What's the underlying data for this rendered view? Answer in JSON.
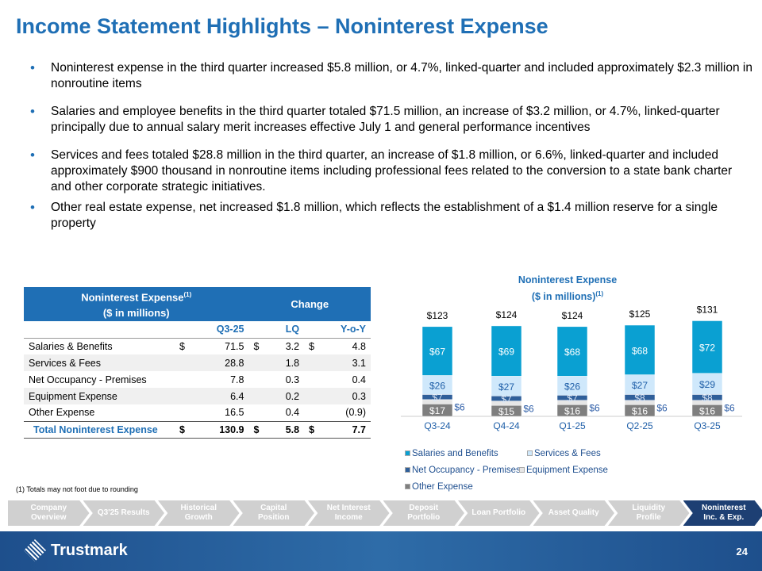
{
  "title": "Income Statement Highlights – Noninterest Expense",
  "bullets": [
    "Noninterest expense in the third quarter increased $5.8 million, or 4.7%, linked-quarter and included approximately $2.3 million in nonroutine items",
    "Salaries and employee benefits in the third quarter totaled $71.5 million, an increase of $3.2 million, or 4.7%, linked-quarter principally due to annual salary merit increases effective July 1 and general performance incentives",
    "Services and fees totaled $28.8 million in the third quarter, an increase of $1.8 million, or 6.6%, linked-quarter and included approximately $900 thousand  in nonroutine items including professional fees related to the conversion to a state bank charter and other corporate strategic initiatives.",
    "Other real estate expense, net increased $1.8 million, which reflects the establishment of a $1.4 million reserve for a single property"
  ],
  "table": {
    "title": "Noninterest Expense",
    "title_sup": "(1)",
    "title_sub": "($ in millions)",
    "change": "Change",
    "cols": [
      "Q3-25",
      "LQ",
      "Y-o-Y"
    ],
    "rows": [
      {
        "label": "Salaries & Benefits",
        "c1": "$",
        "v1": "71.5",
        "c2": "$",
        "v2": "3.2",
        "c3": "$",
        "v3": "4.8"
      },
      {
        "label": "Services & Fees",
        "c1": "",
        "v1": "28.8",
        "c2": "",
        "v2": "1.8",
        "c3": "",
        "v3": "3.1"
      },
      {
        "label": "Net Occupancy - Premises",
        "c1": "",
        "v1": "7.8",
        "c2": "",
        "v2": "0.3",
        "c3": "",
        "v3": "0.4"
      },
      {
        "label": "Equipment Expense",
        "c1": "",
        "v1": "6.4",
        "c2": "",
        "v2": "0.2",
        "c3": "",
        "v3": "0.3"
      },
      {
        "label": "Other Expense",
        "c1": "",
        "v1": "16.5",
        "c2": "",
        "v2": "0.4",
        "c3": "",
        "v3": "(0.9)"
      },
      {
        "label": "Total Noninterest Expense",
        "c1": "$",
        "v1": "130.9",
        "c2": "$",
        "v2": "5.8",
        "c3": "$",
        "v3": "7.7"
      }
    ]
  },
  "chart_data": {
    "type": "bar",
    "stacked": true,
    "title": "Noninterest Expense",
    "subtitle": "($ in millions)",
    "subtitle_sup": "(1)",
    "categories": [
      "Q3-24",
      "Q4-24",
      "Q1-25",
      "Q2-25",
      "Q3-25"
    ],
    "totals": [
      "$123",
      "$124",
      "$124",
      "$125",
      "$131"
    ],
    "total_values": [
      123,
      124,
      124,
      125,
      131
    ],
    "series": [
      {
        "name": "Other Expense",
        "color": "#7f7f7f",
        "label_color": "#ffffff",
        "values": [
          17,
          15,
          16,
          16,
          16
        ]
      },
      {
        "name": "Equipment Expense",
        "color": "#e6e6e6",
        "label_color": "#2f5fa8",
        "values": [
          6,
          6,
          6,
          6,
          6
        ],
        "outside": true
      },
      {
        "name": "Net Occupancy - Premises",
        "color": "#2f5f9a",
        "label_color": "#dbe6f5",
        "values": [
          7,
          7,
          7,
          8,
          8
        ]
      },
      {
        "name": "Services & Fees",
        "color": "#cfe8fb",
        "label_color": "#1f5fa8",
        "values": [
          26,
          27,
          26,
          27,
          29
        ]
      },
      {
        "name": "Salaries and Benefits",
        "color": "#0aa0d2",
        "label_color": "#ffffff",
        "values": [
          67,
          69,
          68,
          68,
          72
        ]
      }
    ],
    "legend": [
      "Salaries and Benefits",
      "Services & Fees",
      "Net Occupancy - Premises",
      "Equipment Expense",
      "Other Expense"
    ],
    "legend_colors": [
      "#0aa0d2",
      "#cfe8fb",
      "#2f5f9a",
      "#e6e6e6",
      "#7f7f7f"
    ]
  },
  "footnote": "(1)      Totals may not foot due to rounding",
  "nav": [
    "Company Overview",
    "Q3'25 Results",
    "Historical Growth",
    "Capital Position",
    "Net Interest Income",
    "Deposit Portfolio",
    "Loan Portfolio",
    "Asset Quality",
    "Liquidity Profile",
    "Noninterest Inc. & Exp."
  ],
  "nav_active": 9,
  "brand": "Trustmark",
  "page_number": "24"
}
